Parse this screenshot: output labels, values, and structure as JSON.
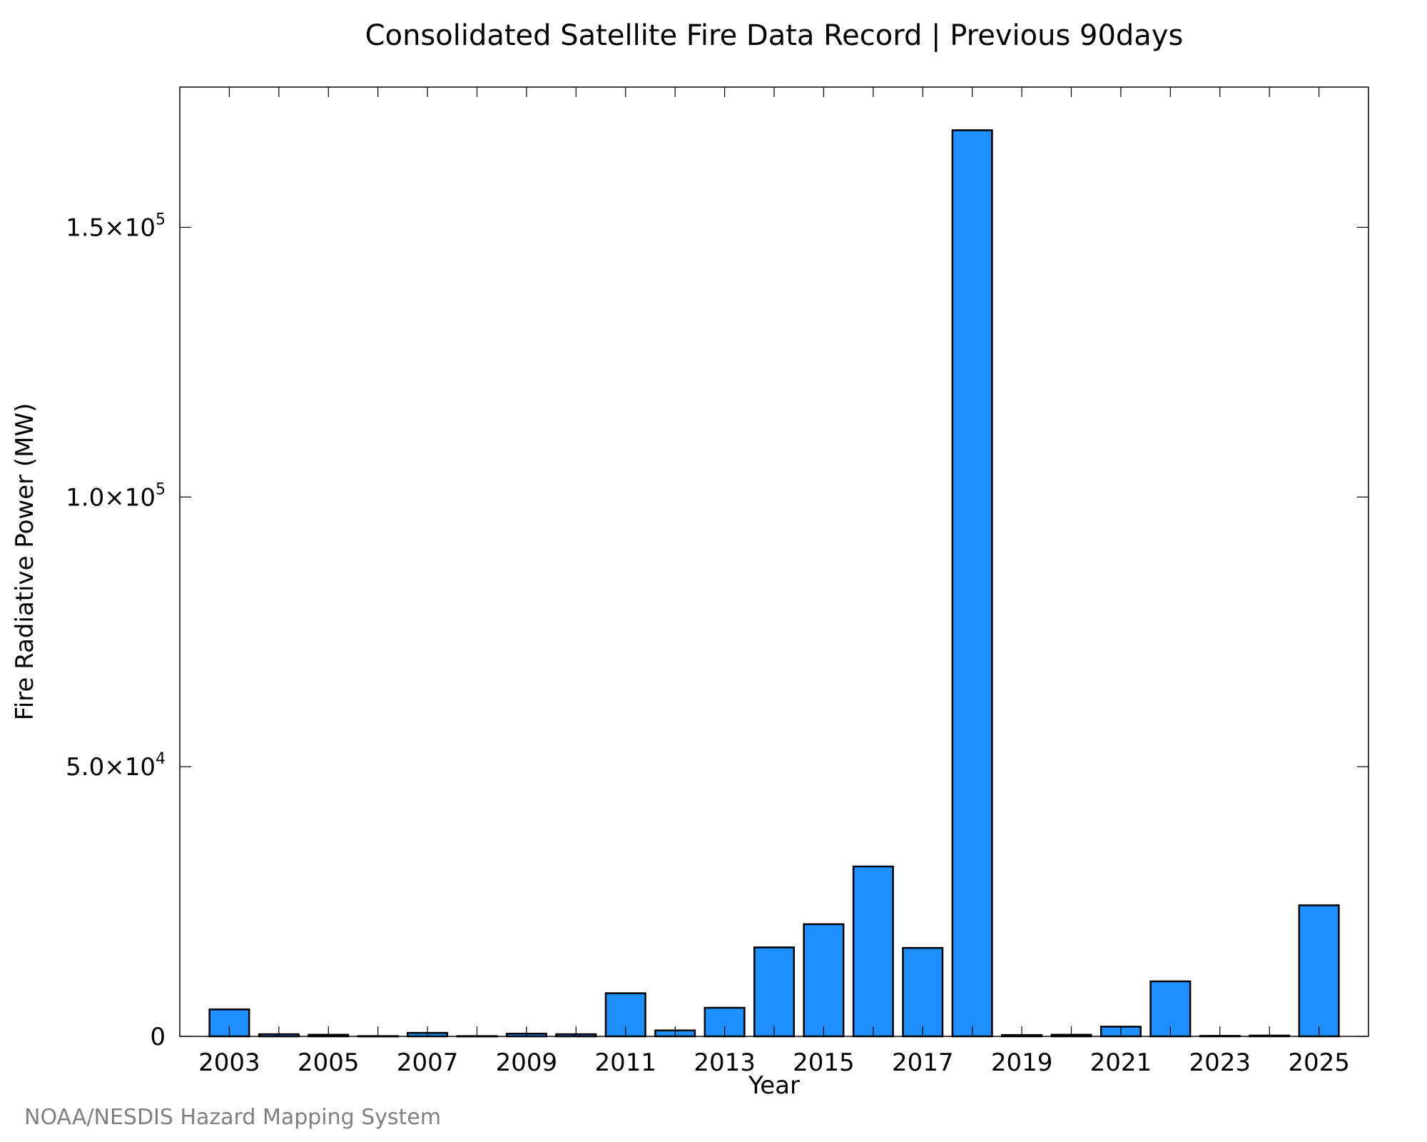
{
  "chart_data": {
    "type": "bar",
    "title": "Consolidated Satellite Fire Data Record | Previous 90days",
    "xlabel": "Year",
    "ylabel": "Fire Radiative Power (MW)",
    "categories": [
      2003,
      2004,
      2005,
      2006,
      2007,
      2008,
      2009,
      2010,
      2011,
      2012,
      2013,
      2014,
      2015,
      2016,
      2017,
      2018,
      2019,
      2020,
      2021,
      2022,
      2023,
      2024,
      2025
    ],
    "values": [
      5000,
      400,
      300,
      50,
      650,
      50,
      500,
      400,
      8000,
      1100,
      5300,
      16500,
      20800,
      31500,
      16400,
      168000,
      250,
      300,
      1800,
      10200,
      100,
      150,
      24300
    ],
    "xticks": [
      "2003",
      "2005",
      "2007",
      "2009",
      "2011",
      "2013",
      "2015",
      "2017",
      "2019",
      "2021",
      "2023",
      "2025"
    ],
    "yticks": [
      {
        "value": 0,
        "mantissa": "0",
        "exp": ""
      },
      {
        "value": 50000,
        "mantissa": "5.0×10",
        "exp": "4"
      },
      {
        "value": 100000,
        "mantissa": "1.0×10",
        "exp": "5"
      },
      {
        "value": 150000,
        "mantissa": "1.5×10",
        "exp": "5"
      }
    ],
    "ylim": [
      0,
      176000
    ],
    "xlim": [
      2002.0,
      2026.0
    ],
    "grid": false,
    "bar_color": "#1E8FFF",
    "bar_edge_color": "#000000"
  },
  "credit": "NOAA/NESDIS Hazard Mapping System"
}
